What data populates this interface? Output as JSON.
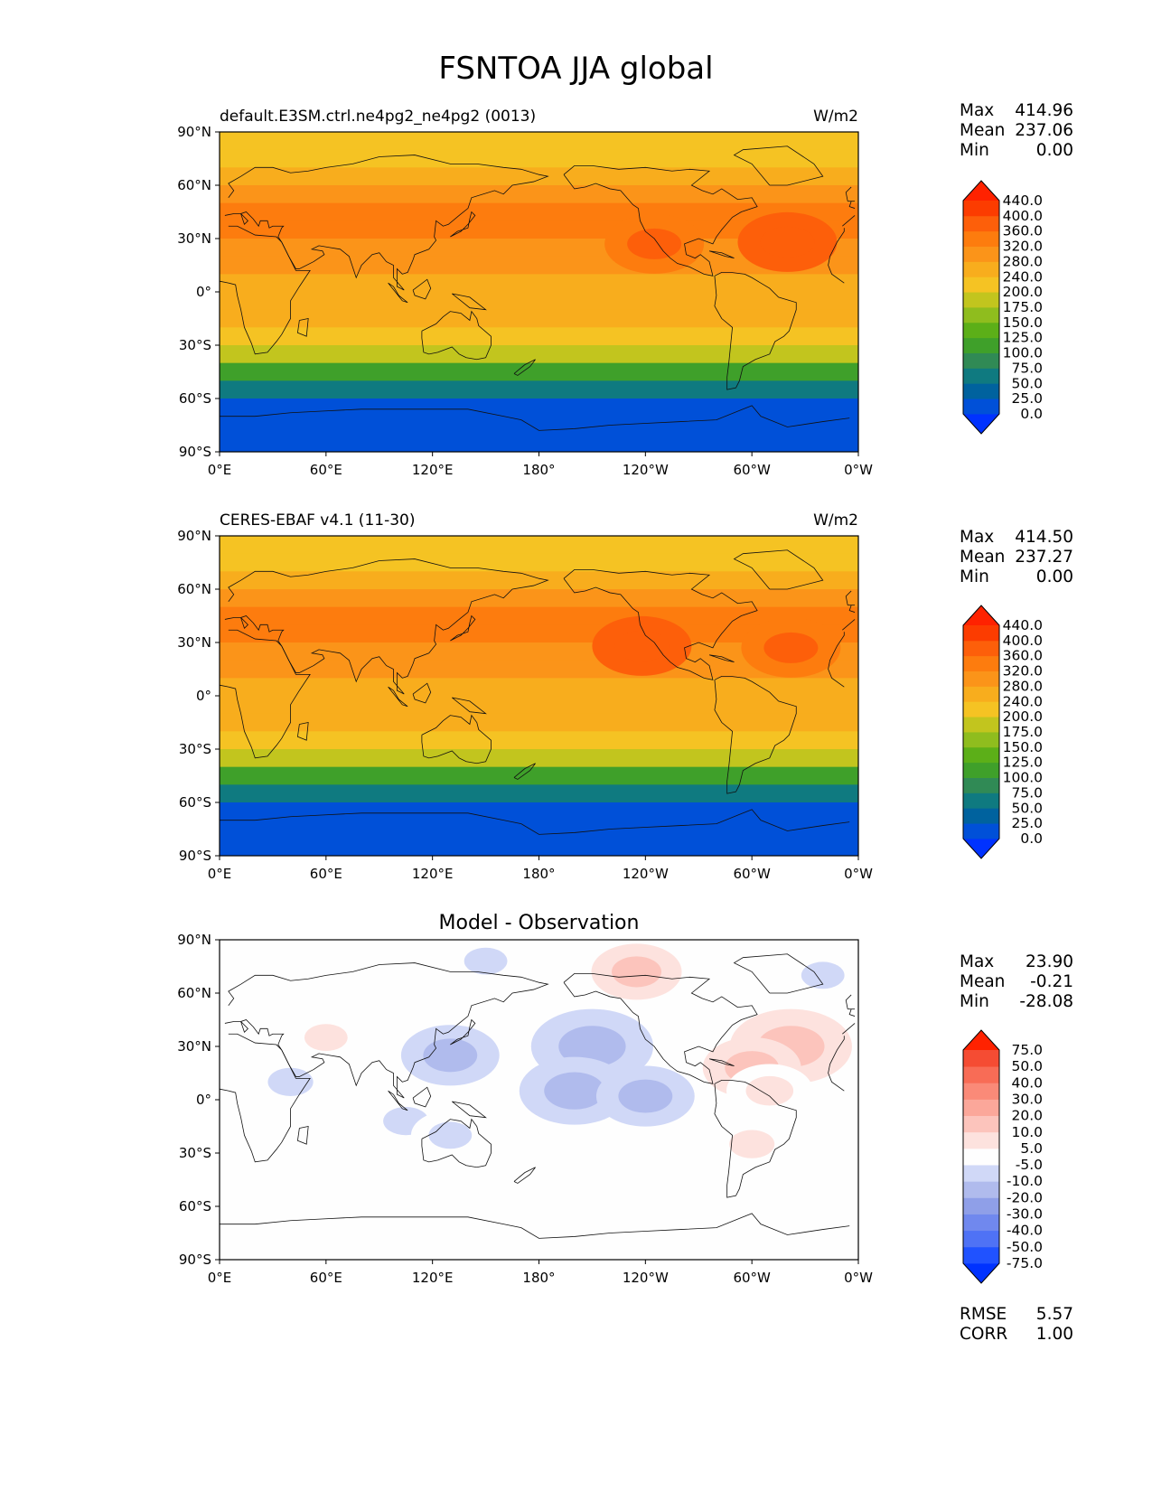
{
  "figure": {
    "title": "FSNTOA JJA global"
  },
  "chart_data": [
    {
      "type": "heatmap",
      "panel_id": "model",
      "title_left": "default.E3SM.ctrl.ne4pg2_ne4pg2 (0013)",
      "title_center": "",
      "units": "W/m2",
      "x_ticks": [
        "0°E",
        "60°E",
        "120°E",
        "180°",
        "120°W",
        "60°W",
        "0°W"
      ],
      "y_ticks": [
        "90°N",
        "60°N",
        "30°N",
        "0°",
        "30°S",
        "60°S",
        "90°S"
      ],
      "lat_rows": [
        85,
        75,
        65,
        55,
        45,
        35,
        25,
        15,
        5,
        -5,
        -15,
        -25,
        -35,
        -45,
        -55,
        -65,
        -75,
        -85
      ],
      "row_values": [
        200,
        210,
        250,
        290,
        320,
        320,
        300,
        280,
        270,
        260,
        240,
        210,
        175,
        120,
        60,
        15,
        5,
        0
      ],
      "hotspots": [
        {
          "lon": 245,
          "lat": 27,
          "value": 380
        },
        {
          "lon": 320,
          "lat": 28,
          "value": 385
        }
      ],
      "stats": [
        {
          "label": "Max",
          "value": "414.96"
        },
        {
          "label": "Mean",
          "value": "237.06"
        },
        {
          "label": "Min",
          "value": "0.00"
        }
      ],
      "colorbar": {
        "labels": [
          "440.0",
          "400.0",
          "360.0",
          "320.0",
          "280.0",
          "240.0",
          "200.0",
          "175.0",
          "150.0",
          "125.0",
          "100.0",
          "75.0",
          "50.0",
          "25.0",
          "0.0"
        ],
        "colors": [
          "#0032ff",
          "#0050d8",
          "#00629e",
          "#0f7a80",
          "#308a55",
          "#3fa02a",
          "#5caf18",
          "#8fbd1e",
          "#c2c51e",
          "#f5c323",
          "#f8ad1d",
          "#fb9419",
          "#fd7c0e",
          "#fd5f0a",
          "#fc3c00",
          "#ff2200"
        ]
      }
    },
    {
      "type": "heatmap",
      "panel_id": "obs",
      "title_left": "CERES-EBAF v4.1 (11-30)",
      "title_center": "",
      "units": "W/m2",
      "x_ticks": [
        "0°E",
        "60°E",
        "120°E",
        "180°",
        "120°W",
        "60°W",
        "0°W"
      ],
      "y_ticks": [
        "90°N",
        "60°N",
        "30°N",
        "0°",
        "30°S",
        "60°S",
        "90°S"
      ],
      "lat_rows": [
        85,
        75,
        65,
        55,
        45,
        35,
        25,
        15,
        5,
        -5,
        -15,
        -25,
        -35,
        -45,
        -55,
        -65,
        -75,
        -85
      ],
      "row_values": [
        205,
        215,
        255,
        295,
        320,
        325,
        305,
        285,
        275,
        265,
        245,
        210,
        175,
        120,
        60,
        15,
        5,
        0
      ],
      "hotspots": [
        {
          "lon": 238,
          "lat": 28,
          "value": 385
        },
        {
          "lon": 322,
          "lat": 27,
          "value": 380
        }
      ],
      "stats": [
        {
          "label": "Max",
          "value": "414.50"
        },
        {
          "label": "Mean",
          "value": "237.27"
        },
        {
          "label": "Min",
          "value": "0.00"
        }
      ],
      "colorbar": {
        "labels": [
          "440.0",
          "400.0",
          "360.0",
          "320.0",
          "280.0",
          "240.0",
          "200.0",
          "175.0",
          "150.0",
          "125.0",
          "100.0",
          "75.0",
          "50.0",
          "25.0",
          "0.0"
        ],
        "colors": [
          "#0032ff",
          "#0050d8",
          "#00629e",
          "#0f7a80",
          "#308a55",
          "#3fa02a",
          "#5caf18",
          "#8fbd1e",
          "#c2c51e",
          "#f5c323",
          "#f8ad1d",
          "#fb9419",
          "#fd7c0e",
          "#fd5f0a",
          "#fc3c00",
          "#ff2200"
        ]
      }
    },
    {
      "type": "heatmap",
      "panel_id": "diff",
      "title_left": "",
      "title_center": "Model - Observation",
      "units": "",
      "x_ticks": [
        "0°E",
        "60°E",
        "120°E",
        "180°",
        "120°W",
        "60°W",
        "0°W"
      ],
      "y_ticks": [
        "90°N",
        "60°N",
        "30°N",
        "0°",
        "30°S",
        "60°S",
        "90°S"
      ],
      "anomalies": [
        {
          "lon": 228,
          "lat": 78,
          "value": 8
        },
        {
          "lon": 235,
          "lat": 72,
          "value": 10
        },
        {
          "lon": 150,
          "lat": 78,
          "value": -7
        },
        {
          "lon": 322,
          "lat": 30,
          "value": 18
        },
        {
          "lon": 300,
          "lat": 18,
          "value": 12
        },
        {
          "lon": 310,
          "lat": 5,
          "value": 9
        },
        {
          "lon": 210,
          "lat": 30,
          "value": -18
        },
        {
          "lon": 200,
          "lat": 5,
          "value": -15
        },
        {
          "lon": 240,
          "lat": 2,
          "value": -12
        },
        {
          "lon": 130,
          "lat": 25,
          "value": -12
        },
        {
          "lon": 40,
          "lat": 10,
          "value": -8
        },
        {
          "lon": 105,
          "lat": -12,
          "value": -8
        },
        {
          "lon": 130,
          "lat": -20,
          "value": -7
        },
        {
          "lon": 340,
          "lat": 70,
          "value": -7
        },
        {
          "lon": 300,
          "lat": -25,
          "value": 8
        },
        {
          "lon": 60,
          "lat": 35,
          "value": 7
        }
      ],
      "stats": [
        {
          "label": "Max",
          "value": "23.90"
        },
        {
          "label": "Mean",
          "value": "-0.21"
        },
        {
          "label": "Min",
          "value": "-28.08"
        }
      ],
      "colorbar": {
        "labels": [
          "75.0",
          "50.0",
          "40.0",
          "30.0",
          "20.0",
          "10.0",
          "5.0",
          "-5.0",
          "-10.0",
          "-20.0",
          "-30.0",
          "-40.0",
          "-50.0",
          "-75.0"
        ],
        "colors": [
          "#0032ff",
          "#2052ff",
          "#4f72f5",
          "#7088ee",
          "#8f9fe8",
          "#b0bbed",
          "#d0d8f7",
          "#fefefe",
          "#fde2de",
          "#fcc4bc",
          "#fba79a",
          "#fa8a78",
          "#f86c56",
          "#f54c33",
          "#ff2200"
        ]
      },
      "metrics": [
        {
          "label": "RMSE",
          "value": "5.57"
        },
        {
          "label": "CORR",
          "value": "1.00"
        }
      ]
    }
  ]
}
